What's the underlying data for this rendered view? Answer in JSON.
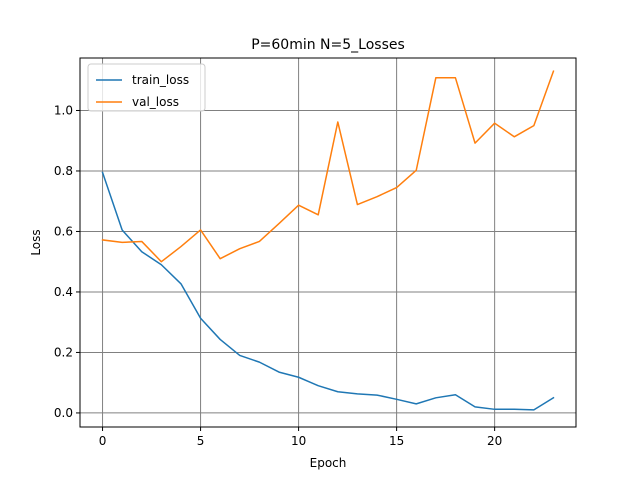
{
  "chart_data": {
    "type": "line",
    "title": "P=60min N=5_Losses",
    "xlabel": "Epoch",
    "ylabel": "Loss",
    "xlim": [
      -1.15,
      24.15
    ],
    "ylim": [
      -0.0465,
      1.1735
    ],
    "x_ticks": [
      0,
      5,
      10,
      15,
      20
    ],
    "y_ticks": [
      0.0,
      0.2,
      0.4,
      0.6,
      0.8,
      1.0
    ],
    "x_tick_labels": [
      "0",
      "5",
      "10",
      "15",
      "20"
    ],
    "y_tick_labels": [
      "0.0",
      "0.2",
      "0.4",
      "0.6",
      "0.8",
      "1.0"
    ],
    "grid": true,
    "legend_position": "top-left",
    "x": [
      0,
      1,
      2,
      3,
      4,
      5,
      6,
      7,
      8,
      9,
      10,
      11,
      12,
      13,
      14,
      15,
      16,
      17,
      18,
      19,
      20,
      21,
      22,
      23
    ],
    "series": [
      {
        "name": "train_loss",
        "color": "#1f77b4",
        "values": [
          0.795,
          0.605,
          0.533,
          0.49,
          0.427,
          0.313,
          0.243,
          0.19,
          0.168,
          0.135,
          0.118,
          0.09,
          0.07,
          0.063,
          0.059,
          0.045,
          0.03,
          0.05,
          0.06,
          0.02,
          0.012,
          0.012,
          0.01,
          0.05
        ]
      },
      {
        "name": "val_loss",
        "color": "#ff7f0e",
        "values": [
          0.572,
          0.564,
          0.567,
          0.5,
          0.55,
          0.605,
          0.51,
          0.543,
          0.567,
          0.626,
          0.687,
          0.655,
          0.962,
          0.689,
          0.715,
          0.745,
          0.802,
          1.108,
          1.108,
          0.892,
          0.958,
          0.913,
          0.95,
          1.13
        ]
      }
    ]
  }
}
